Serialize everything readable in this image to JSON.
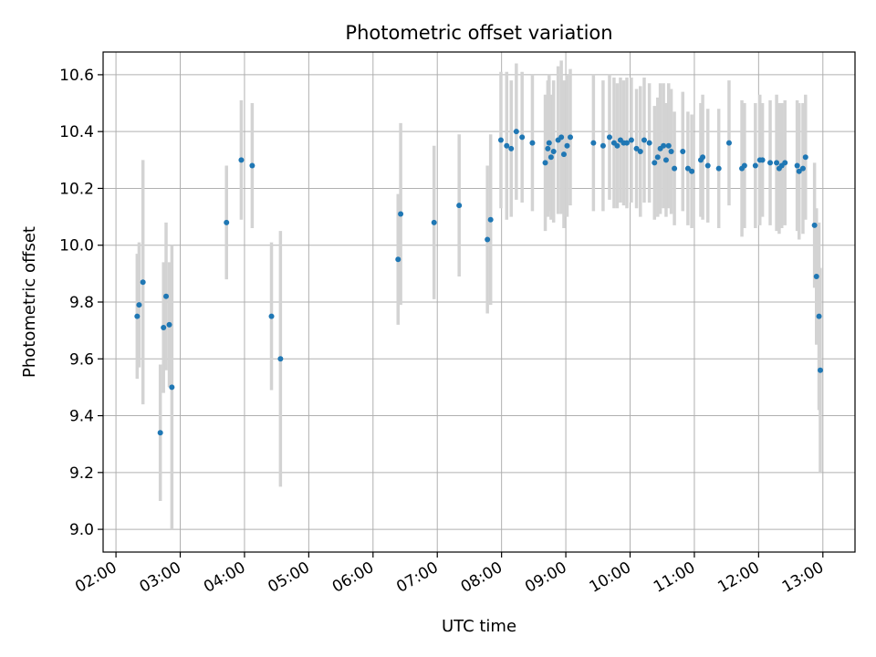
{
  "chart_data": {
    "type": "scatter",
    "title": "Photometric offset variation",
    "xlabel": "UTC time",
    "ylabel": "Photometric offset",
    "xlim": [
      1.8,
      13.5
    ],
    "ylim": [
      8.92,
      10.68
    ],
    "grid": true,
    "x_ticks": [
      2,
      3,
      4,
      5,
      6,
      7,
      8,
      9,
      10,
      11,
      12,
      13
    ],
    "x_tick_labels": [
      "02:00",
      "03:00",
      "04:00",
      "05:00",
      "06:00",
      "07:00",
      "08:00",
      "09:00",
      "10:00",
      "11:00",
      "12:00",
      "13:00"
    ],
    "y_ticks": [
      9.0,
      9.2,
      9.4,
      9.6,
      9.8,
      10.0,
      10.2,
      10.4,
      10.6
    ],
    "y_tick_labels": [
      "9.0",
      "9.2",
      "9.4",
      "9.6",
      "9.8",
      "10.0",
      "10.2",
      "10.4",
      "10.6"
    ],
    "colors": {
      "marker": "#1f77b4",
      "errorbar": "#d3d3d3",
      "grid": "#b0b0b0"
    },
    "series": [
      {
        "name": "Photometric offset",
        "x": [
          2.33,
          2.36,
          2.42,
          2.69,
          2.74,
          2.78,
          2.83,
          2.87,
          3.72,
          3.95,
          4.12,
          4.42,
          4.56,
          6.39,
          6.43,
          6.95,
          7.34,
          7.78,
          7.83,
          7.99,
          8.08,
          8.15,
          8.23,
          8.32,
          8.48,
          8.68,
          8.72,
          8.74,
          8.77,
          8.81,
          8.88,
          8.93,
          8.97,
          9.02,
          9.07,
          9.43,
          9.58,
          9.68,
          9.75,
          9.8,
          9.85,
          9.9,
          9.95,
          10.02,
          10.1,
          10.16,
          10.22,
          10.3,
          10.38,
          10.43,
          10.47,
          10.52,
          10.56,
          10.6,
          10.64,
          10.69,
          10.82,
          10.9,
          10.96,
          11.1,
          11.13,
          11.21,
          11.38,
          11.54,
          11.74,
          11.78,
          11.95,
          12.02,
          12.06,
          12.18,
          12.28,
          12.32,
          12.36,
          12.41,
          12.6,
          12.63,
          12.69,
          12.73,
          12.87,
          12.9,
          12.94,
          12.96
        ],
        "y": [
          9.75,
          9.79,
          9.87,
          9.34,
          9.71,
          9.82,
          9.72,
          9.5,
          10.08,
          10.3,
          10.28,
          9.75,
          9.6,
          9.95,
          10.11,
          10.08,
          10.14,
          10.02,
          10.09,
          10.37,
          10.35,
          10.34,
          10.4,
          10.38,
          10.36,
          10.29,
          10.34,
          10.36,
          10.31,
          10.33,
          10.37,
          10.38,
          10.32,
          10.35,
          10.38,
          10.36,
          10.35,
          10.38,
          10.36,
          10.35,
          10.37,
          10.36,
          10.36,
          10.37,
          10.34,
          10.33,
          10.37,
          10.36,
          10.29,
          10.31,
          10.34,
          10.35,
          10.3,
          10.35,
          10.33,
          10.27,
          10.33,
          10.27,
          10.26,
          10.3,
          10.31,
          10.28,
          10.27,
          10.36,
          10.27,
          10.28,
          10.28,
          10.3,
          10.3,
          10.29,
          10.29,
          10.27,
          10.28,
          10.29,
          10.28,
          10.26,
          10.27,
          10.31,
          10.07,
          9.89,
          9.75,
          9.56
        ],
        "yerr": [
          0.22,
          0.22,
          0.43,
          0.24,
          0.23,
          0.26,
          0.22,
          0.5,
          0.2,
          0.21,
          0.22,
          0.26,
          0.45,
          0.23,
          0.32,
          0.27,
          0.25,
          0.26,
          0.3,
          0.24,
          0.26,
          0.24,
          0.24,
          0.23,
          0.24,
          0.24,
          0.24,
          0.24,
          0.22,
          0.25,
          0.26,
          0.27,
          0.26,
          0.25,
          0.24,
          0.24,
          0.23,
          0.22,
          0.23,
          0.22,
          0.22,
          0.22,
          0.23,
          0.22,
          0.21,
          0.23,
          0.22,
          0.21,
          0.2,
          0.21,
          0.23,
          0.22,
          0.2,
          0.22,
          0.22,
          0.2,
          0.21,
          0.2,
          0.2,
          0.2,
          0.22,
          0.2,
          0.21,
          0.22,
          0.24,
          0.22,
          0.22,
          0.23,
          0.2,
          0.22,
          0.24,
          0.23,
          0.22,
          0.22,
          0.23,
          0.24,
          0.23,
          0.22,
          0.22,
          0.24,
          0.33,
          0.36
        ]
      }
    ]
  }
}
